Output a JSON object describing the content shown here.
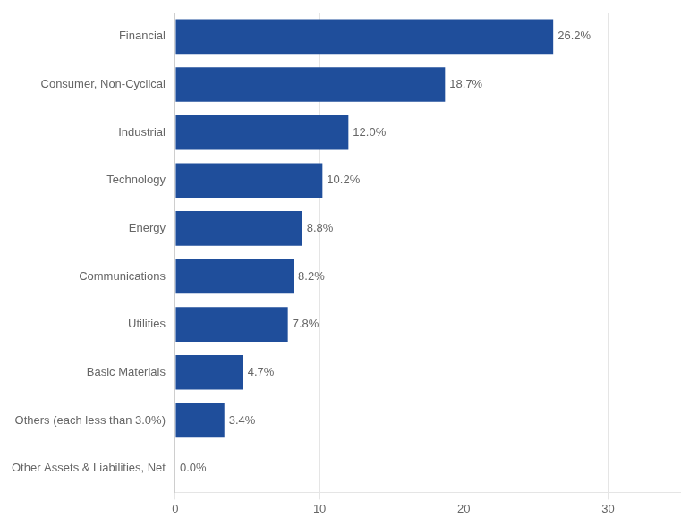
{
  "chart_data": {
    "type": "bar",
    "orientation": "horizontal",
    "categories": [
      "Other Assets & Liabilities, Net",
      "Others (each less than 3.0%)",
      "Basic Materials",
      "Utilities",
      "Communications",
      "Energy",
      "Technology",
      "Industrial",
      "Consumer, Non-Cyclical",
      "Financial"
    ],
    "values": [
      0.0,
      3.4,
      4.7,
      7.8,
      8.2,
      8.8,
      10.2,
      12.0,
      18.7,
      26.2
    ],
    "value_labels": [
      "0.0%",
      "3.4%",
      "4.7%",
      "7.8%",
      "8.2%",
      "8.8%",
      "10.2%",
      "12.0%",
      "18.7%",
      "26.2%"
    ],
    "data_labels": true,
    "color": "#1F4E9B",
    "xlim": [
      0,
      35
    ],
    "xticks": [
      0,
      10,
      20,
      30
    ],
    "grid": true
  }
}
